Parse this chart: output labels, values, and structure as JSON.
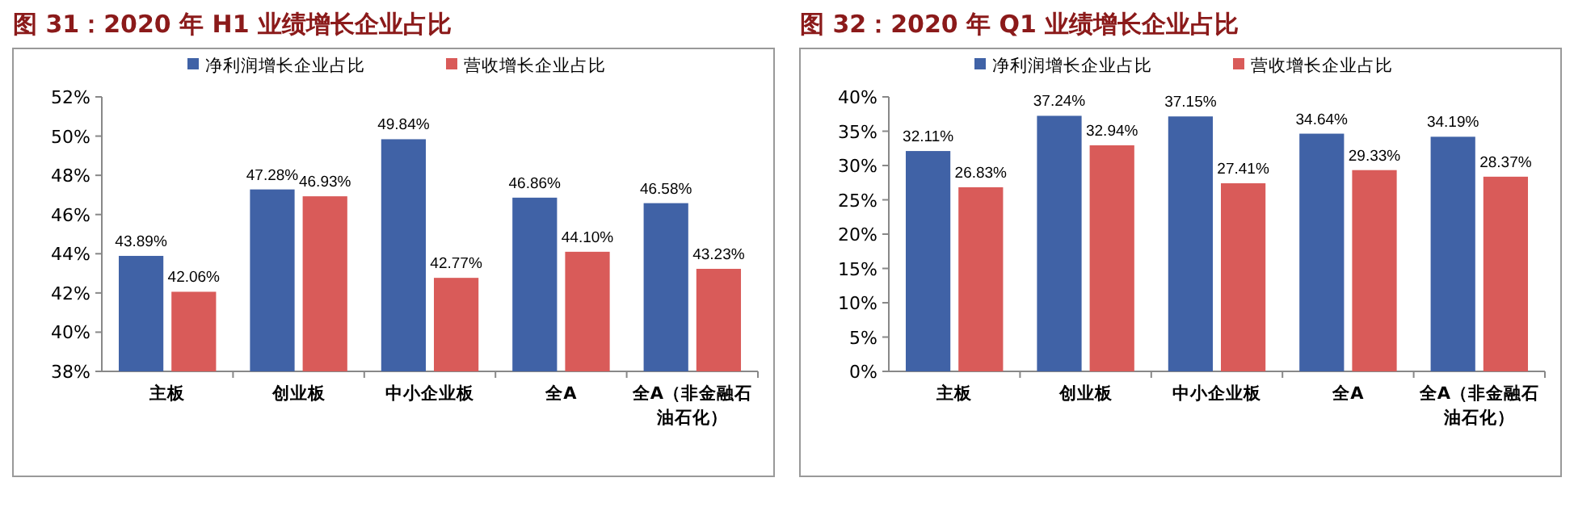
{
  "chart_data": [
    {
      "type": "bar",
      "title": "图 31：2020 年 H1 业绩增长企业占比",
      "categories": [
        "主板",
        "创业板",
        "中小企业板",
        "全A",
        "全A（非金融石油石化）"
      ],
      "series": [
        {
          "name": "净利润增长企业占比",
          "color": "#4062a6",
          "values": [
            43.89,
            47.28,
            49.84,
            46.86,
            46.58
          ],
          "value_labels": [
            "43.89%",
            "47.28%",
            "49.84%",
            "46.86%",
            "46.58%"
          ]
        },
        {
          "name": "营收增长企业占比",
          "color": "#d95b59",
          "values": [
            42.06,
            46.93,
            42.77,
            44.1,
            43.23
          ],
          "value_labels": [
            "42.06%",
            "46.93%",
            "42.77%",
            "44.10%",
            "43.23%"
          ]
        }
      ],
      "ylim": [
        38,
        52
      ],
      "yticks": [
        {
          "value": 38,
          "label": "38%"
        },
        {
          "value": 40,
          "label": "40%"
        },
        {
          "value": 42,
          "label": "42%"
        },
        {
          "value": 44,
          "label": "44%"
        },
        {
          "value": 46,
          "label": "46%"
        },
        {
          "value": 48,
          "label": "48%"
        },
        {
          "value": 50,
          "label": "50%"
        },
        {
          "value": 52,
          "label": "52%"
        }
      ],
      "legend": "top",
      "grid": false
    },
    {
      "type": "bar",
      "title": "图 32：2020 年 Q1 业绩增长企业占比",
      "categories": [
        "主板",
        "创业板",
        "中小企业板",
        "全A",
        "全A（非金融石油石化）"
      ],
      "series": [
        {
          "name": "净利润增长企业占比",
          "color": "#4062a6",
          "values": [
            32.11,
            37.24,
            37.15,
            34.64,
            34.19
          ],
          "value_labels": [
            "32.11%",
            "37.24%",
            "37.15%",
            "34.64%",
            "34.19%"
          ]
        },
        {
          "name": "营收增长企业占比",
          "color": "#d95b59",
          "values": [
            26.83,
            32.94,
            27.41,
            29.33,
            28.37
          ],
          "value_labels": [
            "26.83%",
            "32.94%",
            "27.41%",
            "29.33%",
            "28.37%"
          ]
        }
      ],
      "ylim": [
        0,
        40
      ],
      "yticks": [
        {
          "value": 0,
          "label": "0%"
        },
        {
          "value": 5,
          "label": "5%"
        },
        {
          "value": 10,
          "label": "10%"
        },
        {
          "value": 15,
          "label": "15%"
        },
        {
          "value": 20,
          "label": "20%"
        },
        {
          "value": 25,
          "label": "25%"
        },
        {
          "value": 30,
          "label": "30%"
        },
        {
          "value": 35,
          "label": "35%"
        },
        {
          "value": 40,
          "label": "40%"
        }
      ],
      "legend": "top",
      "grid": false
    }
  ]
}
